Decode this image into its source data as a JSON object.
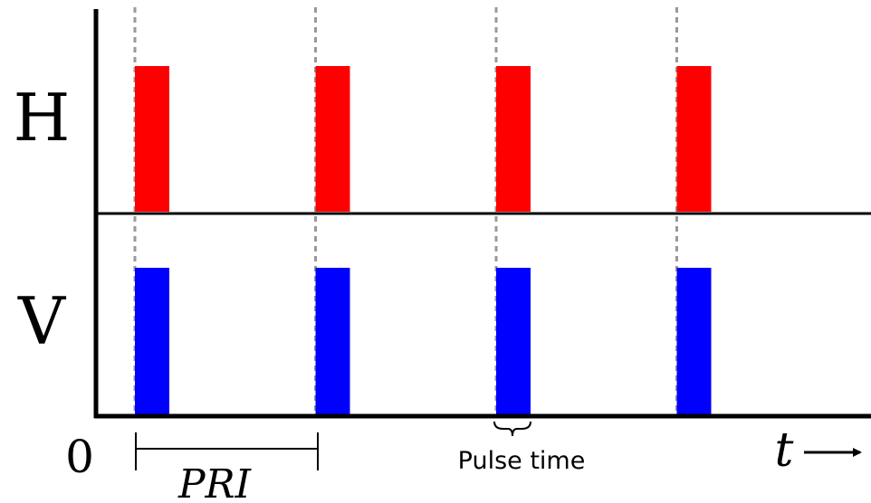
{
  "diagram": {
    "channels": [
      {
        "label": "H",
        "color": "#ff0000"
      },
      {
        "label": "V",
        "color": "#0000ff"
      }
    ],
    "pulse_count": 4,
    "origin_label": "0",
    "time_label": "t",
    "pri_label": "PRI",
    "pulse_time_label": "Pulse time"
  }
}
